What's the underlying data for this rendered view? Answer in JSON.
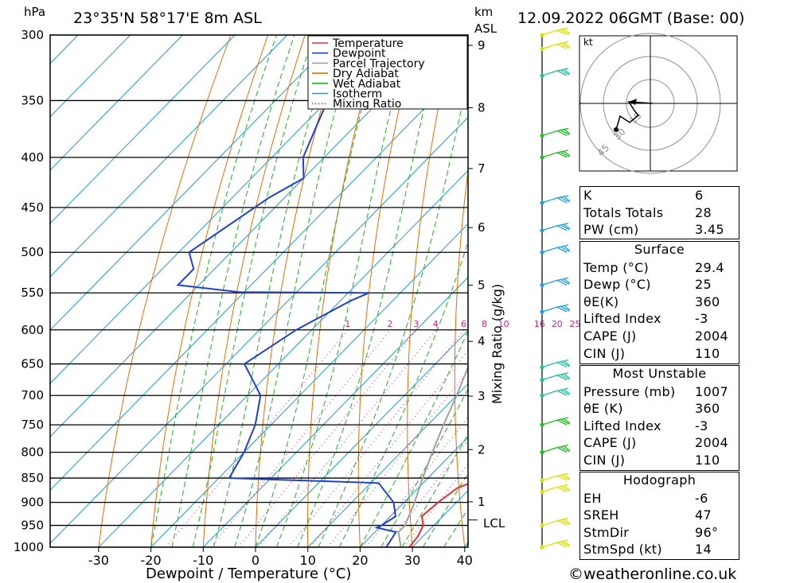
{
  "header": {
    "location": "23°35'N  58°17'E  8m  ASL",
    "datetime": "12.09.2022  06GMT  (Base: 00)",
    "pressure_unit": "hPa",
    "height_unit_km": "km",
    "height_unit_asl": "ASL"
  },
  "footer": {
    "copyright": "©weatheronline.co.uk"
  },
  "chart_data": {
    "type": "skew-t log-p",
    "xlabel": "Dewpoint / Temperature (°C)",
    "ylabel_left": "hPa",
    "ylabel_right": "Mixing Ratio (g/kg)",
    "pressure_ticks": [
      300,
      350,
      400,
      450,
      500,
      550,
      600,
      650,
      700,
      750,
      800,
      850,
      900,
      950,
      1000
    ],
    "temperature_ticks": [
      -30,
      -20,
      -10,
      0,
      10,
      20,
      30,
      40
    ],
    "height_ticks_km": [
      1,
      2,
      3,
      4,
      5,
      6,
      7,
      8,
      9
    ],
    "lcl_label": "LCL",
    "lcl_pressure": 938,
    "mixing_ratio_labels": [
      "1",
      "2",
      "3",
      "4",
      "6",
      "8",
      "10",
      "16",
      "20",
      "25"
    ],
    "legend": [
      {
        "name": "Temperature",
        "color": "#e8302f",
        "style": "solid"
      },
      {
        "name": "Dewpoint",
        "color": "#2040d0",
        "style": "solid"
      },
      {
        "name": "Parcel Trajectory",
        "color": "#a0a0a0",
        "style": "solid"
      },
      {
        "name": "Dry Adiabat",
        "color": "#e07000",
        "style": "solid"
      },
      {
        "name": "Wet Adiabat",
        "color": "#20b020",
        "style": "solid"
      },
      {
        "name": "Isotherm",
        "color": "#1a9ae0",
        "style": "solid"
      },
      {
        "name": "Mixing Ratio",
        "color": "#d0208a",
        "style": "dotted"
      }
    ],
    "series": [
      {
        "name": "Temperature",
        "points": [
          {
            "p": 1000,
            "t": 29.4
          },
          {
            "p": 975,
            "t": 29
          },
          {
            "p": 950,
            "t": 28
          },
          {
            "p": 930,
            "t": 26
          },
          {
            "p": 900,
            "t": 26.5
          },
          {
            "p": 870,
            "t": 27.5
          },
          {
            "p": 860,
            "t": 29
          },
          {
            "p": 850,
            "t": 31
          },
          {
            "p": 800,
            "t": 27
          },
          {
            "p": 750,
            "t": 22.5
          },
          {
            "p": 700,
            "t": 18
          },
          {
            "p": 650,
            "t": 13
          },
          {
            "p": 600,
            "t": 7.5
          },
          {
            "p": 560,
            "t": 2.5
          },
          {
            "p": 550,
            "t": 4.5
          },
          {
            "p": 535,
            "t": 7.5
          },
          {
            "p": 525,
            "t": 7
          },
          {
            "p": 500,
            "t": 4.5
          },
          {
            "p": 450,
            "t": -1
          },
          {
            "p": 400,
            "t": -8
          },
          {
            "p": 375,
            "t": -12.5
          },
          {
            "p": 355,
            "t": -16
          },
          {
            "p": 340,
            "t": -22.5
          },
          {
            "p": 320,
            "t": -25
          },
          {
            "p": 300,
            "t": -27.5
          }
        ]
      },
      {
        "name": "Dewpoint",
        "points": [
          {
            "p": 1000,
            "t": 25
          },
          {
            "p": 965,
            "t": 24
          },
          {
            "p": 955,
            "t": 19.5
          },
          {
            "p": 950,
            "t": 20
          },
          {
            "p": 930,
            "t": 21
          },
          {
            "p": 900,
            "t": 18
          },
          {
            "p": 860,
            "t": 11.5
          },
          {
            "p": 850,
            "t": -18
          },
          {
            "p": 800,
            "t": -20
          },
          {
            "p": 750,
            "t": -23
          },
          {
            "p": 700,
            "t": -27.5
          },
          {
            "p": 680,
            "t": -31
          },
          {
            "p": 650,
            "t": -36.5
          },
          {
            "p": 600,
            "t": -33
          },
          {
            "p": 560,
            "t": -28
          },
          {
            "p": 550,
            "t": -26
          },
          {
            "p": 549,
            "t": -51
          },
          {
            "p": 540,
            "t": -64
          },
          {
            "p": 520,
            "t": -64
          },
          {
            "p": 500,
            "t": -68
          },
          {
            "p": 440,
            "t": -63
          },
          {
            "p": 420,
            "t": -60
          },
          {
            "p": 400,
            "t": -64
          },
          {
            "p": 350,
            "t": -70
          },
          {
            "p": 320,
            "t": -71
          },
          {
            "p": 300,
            "t": -74
          }
        ]
      },
      {
        "name": "Parcel Trajectory",
        "points": [
          {
            "p": 1000,
            "t": 27.8
          },
          {
            "p": 965,
            "t": 24.5
          },
          {
            "p": 950,
            "t": 24.5
          },
          {
            "p": 900,
            "t": 22
          },
          {
            "p": 850,
            "t": 19
          },
          {
            "p": 800,
            "t": 16
          },
          {
            "p": 750,
            "t": 13
          },
          {
            "p": 700,
            "t": 10
          },
          {
            "p": 650,
            "t": 6.5
          },
          {
            "p": 600,
            "t": 2.5
          },
          {
            "p": 550,
            "t": -2
          },
          {
            "p": 500,
            "t": -7
          },
          {
            "p": 450,
            "t": -13
          },
          {
            "p": 400,
            "t": -20
          },
          {
            "p": 375,
            "t": -24
          }
        ]
      }
    ],
    "wind_barbs": [
      {
        "p": 1000,
        "color": "#e0e000"
      },
      {
        "p": 950,
        "color": "#e0e000"
      },
      {
        "p": 878,
        "color": "#e0e000"
      },
      {
        "p": 855,
        "color": "#e0e000"
      },
      {
        "p": 800,
        "color": "#20c020"
      },
      {
        "p": 750,
        "color": "#20c020"
      },
      {
        "p": 700,
        "color": "#20c0a0"
      },
      {
        "p": 675,
        "color": "#20c0a0"
      },
      {
        "p": 655,
        "color": "#20c0a0"
      },
      {
        "p": 575,
        "color": "#20a0e0"
      },
      {
        "p": 540,
        "color": "#20a0e0"
      },
      {
        "p": 500,
        "color": "#20a0e0"
      },
      {
        "p": 475,
        "color": "#20a0e0"
      },
      {
        "p": 445,
        "color": "#20a0e0"
      },
      {
        "p": 400,
        "color": "#20c020"
      },
      {
        "p": 380,
        "color": "#20c020"
      },
      {
        "p": 330,
        "color": "#20c0a0"
      },
      {
        "p": 310,
        "color": "#e0e000"
      },
      {
        "p": 300,
        "color": "#e0e000"
      }
    ],
    "hodograph": {
      "unit_label": "kt",
      "ring_labels": [
        "15",
        "30",
        "45"
      ]
    }
  },
  "index_table": {
    "general": [
      {
        "label": "K",
        "value": "6"
      },
      {
        "label": "Totals Totals",
        "value": "28"
      },
      {
        "label": "PW (cm)",
        "value": "3.45"
      }
    ],
    "surface": {
      "title": "Surface",
      "rows": [
        {
          "label": "Temp (°C)",
          "value": "29.4"
        },
        {
          "label": "Dewp (°C)",
          "value": "25"
        },
        {
          "label": "θE(K)",
          "value": "360"
        },
        {
          "label": "Lifted Index",
          "value": "-3"
        },
        {
          "label": "CAPE (J)",
          "value": "2004"
        },
        {
          "label": "CIN (J)",
          "value": "110"
        }
      ]
    },
    "most_unstable": {
      "title": "Most Unstable",
      "rows": [
        {
          "label": "Pressure (mb)",
          "value": "1007"
        },
        {
          "label": "θE (K)",
          "value": "360"
        },
        {
          "label": "Lifted Index",
          "value": "-3"
        },
        {
          "label": "CAPE (J)",
          "value": "2004"
        },
        {
          "label": "CIN (J)",
          "value": "110"
        }
      ]
    },
    "hodograph": {
      "title": "Hodograph",
      "rows": [
        {
          "label": "EH",
          "value": "-6"
        },
        {
          "label": "SREH",
          "value": "47"
        },
        {
          "label": "StmDir",
          "value": "96°"
        },
        {
          "label": "StmSpd (kt)",
          "value": "14"
        }
      ]
    }
  }
}
